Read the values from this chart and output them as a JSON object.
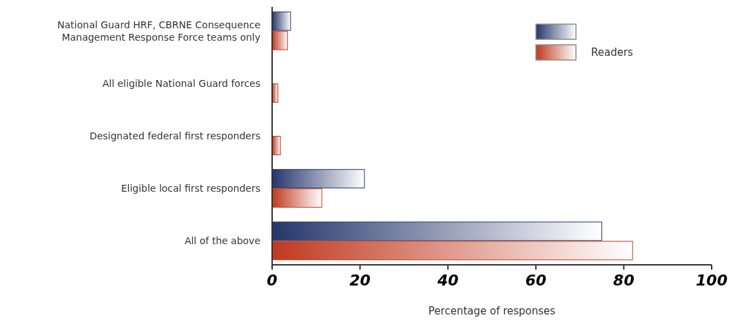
{
  "chart_data": {
    "type": "bar",
    "orientation": "horizontal",
    "categories": [
      "National Guard HRF, CBRNE Consequence Management Response Force teams only",
      "All eligible National Guard forces",
      "Designated federal first responders",
      "Eligible local first responders",
      "All of the above"
    ],
    "series": [
      {
        "color": "#25366a",
        "values": [
          4.2,
          0,
          0,
          21,
          75
        ]
      },
      {
        "name": "Readers",
        "color": "#c0391f",
        "values": [
          3.5,
          1.3,
          1.9,
          11.3,
          82
        ]
      }
    ],
    "xlabel": "Percentage of responses",
    "xlim": [
      0,
      100
    ],
    "xticks": [
      0,
      20,
      40,
      60,
      80,
      100
    ],
    "legend": "top right",
    "grid": false
  }
}
